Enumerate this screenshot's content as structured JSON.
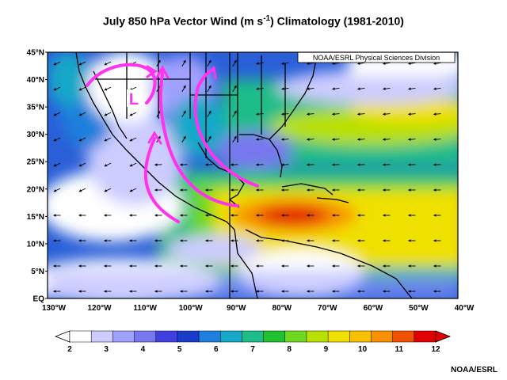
{
  "title": {
    "main": "July 850 hPa Vector Wind (m s",
    "exp": "-1",
    "tail": ") Climatology (1981-2010)"
  },
  "provider_label": "NOAA/ESRL Physical Sciences Division",
  "credit": "NOAA/ESRL",
  "low_marker": "L",
  "lat_labels": [
    "45°N",
    "40°N",
    "35°N",
    "30°N",
    "25°N",
    "20°N",
    "15°N",
    "10°N",
    "5°N",
    "EQ"
  ],
  "lon_labels": [
    "130°W",
    "120°W",
    "110°W",
    "100°W",
    "90°W",
    "80°W",
    "70°W",
    "60°W",
    "50°W",
    "40°W"
  ],
  "colorbar": {
    "ticks": [
      "2",
      "3",
      "4",
      "5",
      "6",
      "7",
      "8",
      "9",
      "10",
      "11",
      "12"
    ],
    "colors": [
      "#ffffff",
      "#ccccff",
      "#a0a0ff",
      "#7878ee",
      "#4040e0",
      "#1a3ccc",
      "#1f7fdc",
      "#16a8c8",
      "#1dbd8a",
      "#20c030",
      "#70d820",
      "#b8e000",
      "#f0e000",
      "#f8c000",
      "#f89000",
      "#f05000",
      "#e00000"
    ]
  },
  "colors": {
    "land_border": "#000000",
    "arrow_path": "#ff33ee",
    "wind_vector": "#000000"
  }
}
